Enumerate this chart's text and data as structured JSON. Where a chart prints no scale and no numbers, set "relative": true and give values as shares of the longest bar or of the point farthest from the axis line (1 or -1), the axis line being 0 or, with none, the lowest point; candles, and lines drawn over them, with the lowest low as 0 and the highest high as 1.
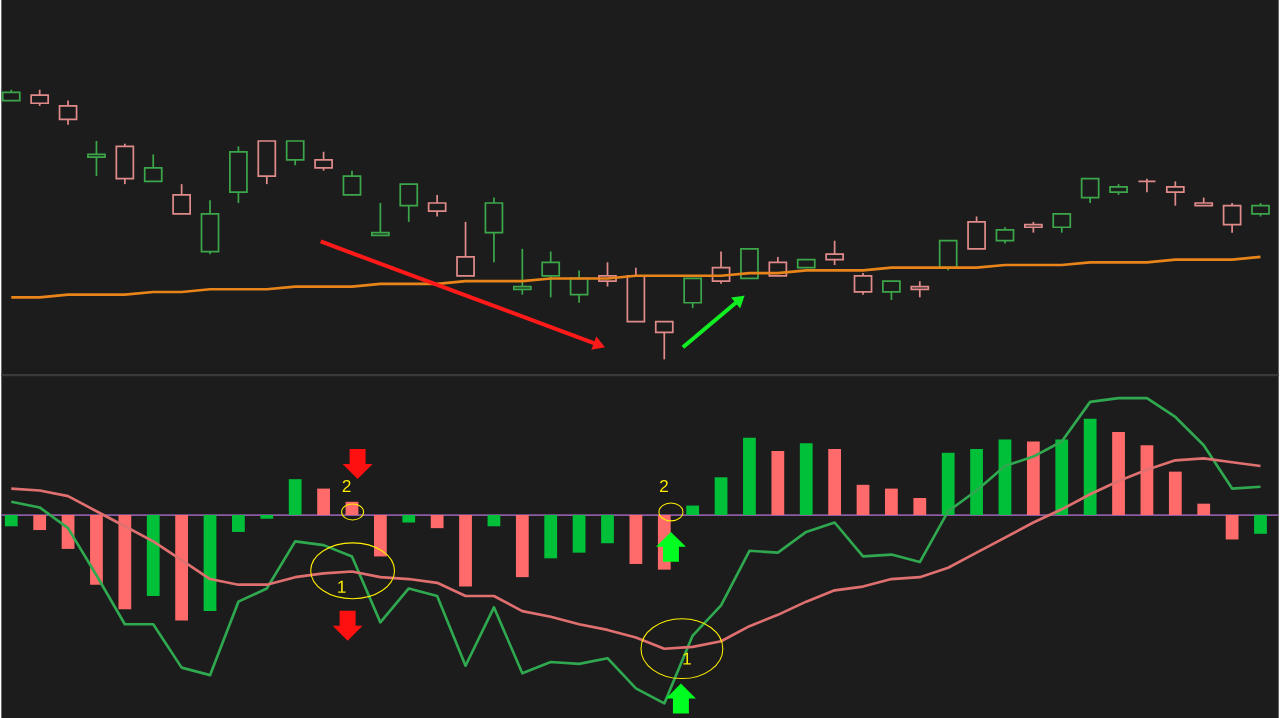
{
  "chart_data": [
    {
      "type": "candlestick",
      "relative": true,
      "categories": [
        null,
        null,
        null,
        null,
        null,
        null,
        null,
        null,
        null,
        null,
        null,
        null,
        null,
        null,
        null,
        null,
        null,
        null,
        null,
        null,
        null,
        null,
        null,
        null,
        null,
        null,
        null,
        null,
        null,
        null,
        null,
        null,
        null,
        null,
        null,
        null,
        null,
        null,
        null,
        null,
        null,
        null,
        null,
        null,
        null
      ],
      "series": [
        {
          "ohlc": [
            [
              0.96,
              1.0,
              0.96,
              0.99
            ],
            [
              0.98,
              1.0,
              0.94,
              0.95
            ],
            [
              0.94,
              0.96,
              0.87,
              0.89
            ],
            [
              0.75,
              0.81,
              0.68,
              0.76
            ],
            [
              0.79,
              0.8,
              0.65,
              0.67
            ],
            [
              0.66,
              0.76,
              0.66,
              0.71
            ],
            [
              0.61,
              0.65,
              0.54,
              0.54
            ],
            [
              0.4,
              0.59,
              0.39,
              0.54
            ],
            [
              0.62,
              0.79,
              0.58,
              0.77
            ],
            [
              0.81,
              0.81,
              0.65,
              0.68
            ],
            [
              0.74,
              0.81,
              0.72,
              0.81
            ],
            [
              0.74,
              0.77,
              0.7,
              0.71
            ],
            [
              0.61,
              0.7,
              0.61,
              0.68
            ],
            [
              0.46,
              0.58,
              0.46,
              0.47
            ],
            [
              0.57,
              0.65,
              0.51,
              0.65
            ],
            [
              0.58,
              0.61,
              0.53,
              0.55
            ],
            [
              0.38,
              0.51,
              0.31,
              0.31
            ],
            [
              0.47,
              0.6,
              0.36,
              0.58
            ],
            [
              0.26,
              0.41,
              0.24,
              0.27
            ],
            [
              0.31,
              0.4,
              0.23,
              0.36
            ],
            [
              0.24,
              0.33,
              0.21,
              0.3
            ],
            [
              0.31,
              0.36,
              0.27,
              0.29
            ],
            [
              0.31,
              0.34,
              0.14,
              0.14
            ],
            [
              0.14,
              0.14,
              0.0,
              0.1
            ],
            [
              0.21,
              0.3,
              0.19,
              0.3
            ],
            [
              0.34,
              0.4,
              0.28,
              0.29
            ],
            [
              0.3,
              0.41,
              0.3,
              0.41
            ],
            [
              0.36,
              0.38,
              0.31,
              0.31
            ],
            [
              0.34,
              0.37,
              0.34,
              0.37
            ],
            [
              0.39,
              0.44,
              0.35,
              0.37
            ],
            [
              0.31,
              0.32,
              0.24,
              0.25
            ],
            [
              0.25,
              0.29,
              0.22,
              0.29
            ],
            [
              0.27,
              0.29,
              0.23,
              0.26
            ],
            [
              0.34,
              0.44,
              0.33,
              0.44
            ],
            [
              0.51,
              0.53,
              0.41,
              0.41
            ],
            [
              0.44,
              0.49,
              0.43,
              0.48
            ],
            [
              0.5,
              0.51,
              0.47,
              0.49
            ],
            [
              0.49,
              0.54,
              0.47,
              0.54
            ],
            [
              0.6,
              0.67,
              0.58,
              0.67
            ],
            [
              0.62,
              0.65,
              0.61,
              0.64
            ],
            [
              0.66,
              0.67,
              0.62,
              0.66
            ],
            [
              0.64,
              0.66,
              0.57,
              0.62
            ],
            [
              0.58,
              0.6,
              0.57,
              0.57
            ],
            [
              0.57,
              0.58,
              0.47,
              0.5
            ],
            [
              0.54,
              0.58,
              0.53,
              0.57
            ]
          ],
          "colors": [
            "#3ca64a",
            "#e08a8a",
            "#e08a8a",
            "#3ca64a",
            "#e08a8a",
            "#3ca64a",
            "#e08a8a",
            "#3ca64a",
            "#3ca64a",
            "#e08a8a",
            "#3ca64a",
            "#e08a8a",
            "#3ca64a",
            "#3ca64a",
            "#3ca64a",
            "#e08a8a",
            "#e08a8a",
            "#3ca64a",
            "#3ca64a",
            "#3ca64a",
            "#3ca64a",
            "#e08a8a",
            "#e08a8a",
            "#e08a8a",
            "#3ca64a",
            "#e08a8a",
            "#3ca64a",
            "#e08a8a",
            "#3ca64a",
            "#e08a8a",
            "#e08a8a",
            "#3ca64a",
            "#e08a8a",
            "#3ca64a",
            "#e08a8a",
            "#3ca64a",
            "#e08a8a",
            "#3ca64a",
            "#3ca64a",
            "#3ca64a",
            "#e08a8a",
            "#e08a8a",
            "#e08a8a",
            "#e08a8a",
            "#3ca64a"
          ]
        },
        {
          "type": "line",
          "color": "#e8841a",
          "values": [
            0.23,
            0.23,
            0.24,
            0.24,
            0.24,
            0.25,
            0.25,
            0.26,
            0.26,
            0.26,
            0.27,
            0.27,
            0.27,
            0.28,
            0.28,
            0.28,
            0.29,
            0.29,
            0.29,
            0.3,
            0.3,
            0.3,
            0.31,
            0.31,
            0.31,
            0.31,
            0.32,
            0.32,
            0.33,
            0.33,
            0.33,
            0.34,
            0.34,
            0.34,
            0.34,
            0.35,
            0.35,
            0.35,
            0.36,
            0.36,
            0.36,
            0.37,
            0.37,
            0.37,
            0.38
          ]
        }
      ]
    },
    {
      "type": "bar",
      "relative": true,
      "categories": [
        null,
        null,
        null,
        null,
        null,
        null,
        null,
        null,
        null,
        null,
        null,
        null,
        null,
        null,
        null,
        null,
        null,
        null,
        null,
        null,
        null,
        null,
        null,
        null,
        null,
        null,
        null,
        null,
        null,
        null,
        null,
        null,
        null,
        null,
        null,
        null,
        null,
        null,
        null,
        null,
        null,
        null,
        null,
        null,
        null
      ],
      "series": [
        {
          "values": [
            -0.06,
            -0.08,
            -0.18,
            -0.37,
            -0.5,
            -0.43,
            -0.56,
            -0.51,
            -0.09,
            -0.02,
            0.19,
            0.14,
            0.07,
            -0.22,
            -0.04,
            -0.07,
            -0.38,
            -0.06,
            -0.33,
            -0.23,
            -0.2,
            -0.15,
            -0.26,
            -0.29,
            0.05,
            0.2,
            0.41,
            0.34,
            0.38,
            0.35,
            0.16,
            0.14,
            0.09,
            0.33,
            0.35,
            0.4,
            0.39,
            0.4,
            0.51,
            0.44,
            0.37,
            0.23,
            0.06,
            -0.13,
            -0.1
          ],
          "colors": [
            "#00c03a",
            "#ff6b6b",
            "#ff6b6b",
            "#ff6b6b",
            "#ff6b6b",
            "#00c03a",
            "#ff6b6b",
            "#00c03a",
            "#00c03a",
            "#00c03a",
            "#00c03a",
            "#ff6b6b",
            "#ff6b6b",
            "#ff6b6b",
            "#00c03a",
            "#ff6b6b",
            "#ff6b6b",
            "#00c03a",
            "#ff6b6b",
            "#00c03a",
            "#00c03a",
            "#00c03a",
            "#ff6b6b",
            "#ff6b6b",
            "#00c03a",
            "#00c03a",
            "#00c03a",
            "#ff6b6b",
            "#00c03a",
            "#ff6b6b",
            "#ff6b6b",
            "#ff6b6b",
            "#ff6b6b",
            "#00c03a",
            "#00c03a",
            "#00c03a",
            "#ff6b6b",
            "#00c03a",
            "#00c03a",
            "#ff6b6b",
            "#ff6b6b",
            "#ff6b6b",
            "#ff6b6b",
            "#ff6b6b",
            "#00c03a"
          ]
        },
        {
          "type": "line",
          "color": "#2fa84f",
          "values": [
            0.07,
            0.04,
            -0.07,
            -0.32,
            -0.58,
            -0.58,
            -0.81,
            -0.85,
            -0.46,
            -0.39,
            -0.14,
            -0.16,
            -0.22,
            -0.57,
            -0.39,
            -0.43,
            -0.8,
            -0.49,
            -0.84,
            -0.78,
            -0.79,
            -0.76,
            -0.92,
            -1,
            -0.64,
            -0.48,
            -0.19,
            -0.2,
            -0.09,
            -0.04,
            -0.22,
            -0.21,
            -0.25,
            0.02,
            0.13,
            0.26,
            0.31,
            0.39,
            0.6,
            0.62,
            0.62,
            0.52,
            0.37,
            0.14,
            0.15
          ]
        },
        {
          "type": "line",
          "color": "#e07070",
          "values": [
            0.14,
            0.13,
            0.1,
            0.02,
            -0.06,
            -0.14,
            -0.24,
            -0.34,
            -0.37,
            -0.37,
            -0.33,
            -0.31,
            -0.3,
            -0.33,
            -0.34,
            -0.36,
            -0.43,
            -0.43,
            -0.51,
            -0.54,
            -0.58,
            -0.61,
            -0.65,
            -0.71,
            -0.7,
            -0.67,
            -0.59,
            -0.53,
            -0.46,
            -0.4,
            -0.38,
            -0.34,
            -0.33,
            -0.28,
            -0.2,
            -0.12,
            -0.04,
            0.03,
            0.11,
            0.18,
            0.24,
            0.29,
            0.3,
            0.28,
            0.26
          ]
        }
      ],
      "ref_lines": [
        {
          "axis": "y",
          "value": 0,
          "color": "#b070d0"
        }
      ],
      "annotations": [
        "2",
        "1",
        "2",
        "1"
      ]
    }
  ]
}
